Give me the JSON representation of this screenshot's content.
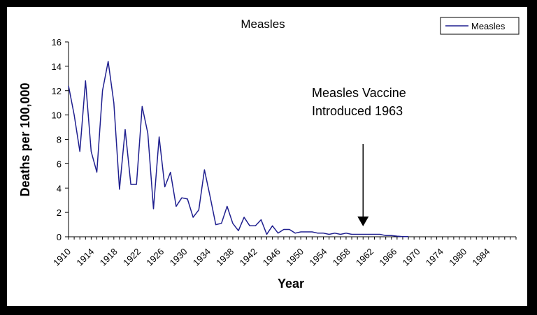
{
  "chart_data": {
    "type": "line",
    "title": "Measles",
    "xlabel": "Year",
    "ylabel": "Deaths per 100,000",
    "ylim": [
      0,
      16
    ],
    "yticks": [
      "0",
      "2",
      "4",
      "6",
      "8",
      "10",
      "12",
      "14",
      "16"
    ],
    "xlim": [
      1910,
      1989
    ],
    "xtick_labels": [
      "1910",
      "1914",
      "1918",
      "1922",
      "1926",
      "1930",
      "1934",
      "1938",
      "1942",
      "1946",
      "1950",
      "1954",
      "1958",
      "1962",
      "1966",
      "1970",
      "1974",
      "1980",
      "1984"
    ],
    "legend": {
      "position": "top-right",
      "label": "Measles"
    },
    "series": [
      {
        "name": "Measles",
        "color": "#1f1f8f",
        "x": [
          1910,
          1911,
          1912,
          1913,
          1914,
          1915,
          1916,
          1917,
          1918,
          1919,
          1920,
          1921,
          1922,
          1923,
          1924,
          1925,
          1926,
          1927,
          1928,
          1929,
          1930,
          1931,
          1932,
          1933,
          1934,
          1935,
          1936,
          1937,
          1938,
          1939,
          1940,
          1941,
          1942,
          1943,
          1944,
          1945,
          1946,
          1947,
          1948,
          1949,
          1950,
          1951,
          1952,
          1953,
          1954,
          1955,
          1956,
          1957,
          1958,
          1959,
          1960,
          1961,
          1962,
          1963,
          1964,
          1965,
          1966,
          1967,
          1968,
          1969,
          1970
        ],
        "y": [
          12.4,
          10.0,
          7.0,
          12.8,
          7.0,
          5.3,
          12.0,
          14.4,
          11.0,
          3.9,
          8.8,
          4.3,
          4.3,
          10.7,
          8.5,
          2.3,
          8.2,
          4.1,
          5.3,
          2.5,
          3.2,
          3.1,
          1.6,
          2.2,
          5.5,
          3.3,
          1.0,
          1.1,
          2.5,
          1.1,
          0.5,
          1.6,
          0.9,
          0.9,
          1.4,
          0.2,
          0.9,
          0.3,
          0.6,
          0.6,
          0.3,
          0.4,
          0.4,
          0.4,
          0.3,
          0.3,
          0.2,
          0.3,
          0.2,
          0.3,
          0.2,
          0.2,
          0.2,
          0.2,
          0.2,
          0.2,
          0.1,
          0.1,
          0.05,
          0.02,
          0.01
        ]
      }
    ],
    "annotations": [
      {
        "text_line1": "Measles Vaccine",
        "text_line2": "Introduced 1963",
        "arrow_to_year": 1962
      }
    ]
  }
}
